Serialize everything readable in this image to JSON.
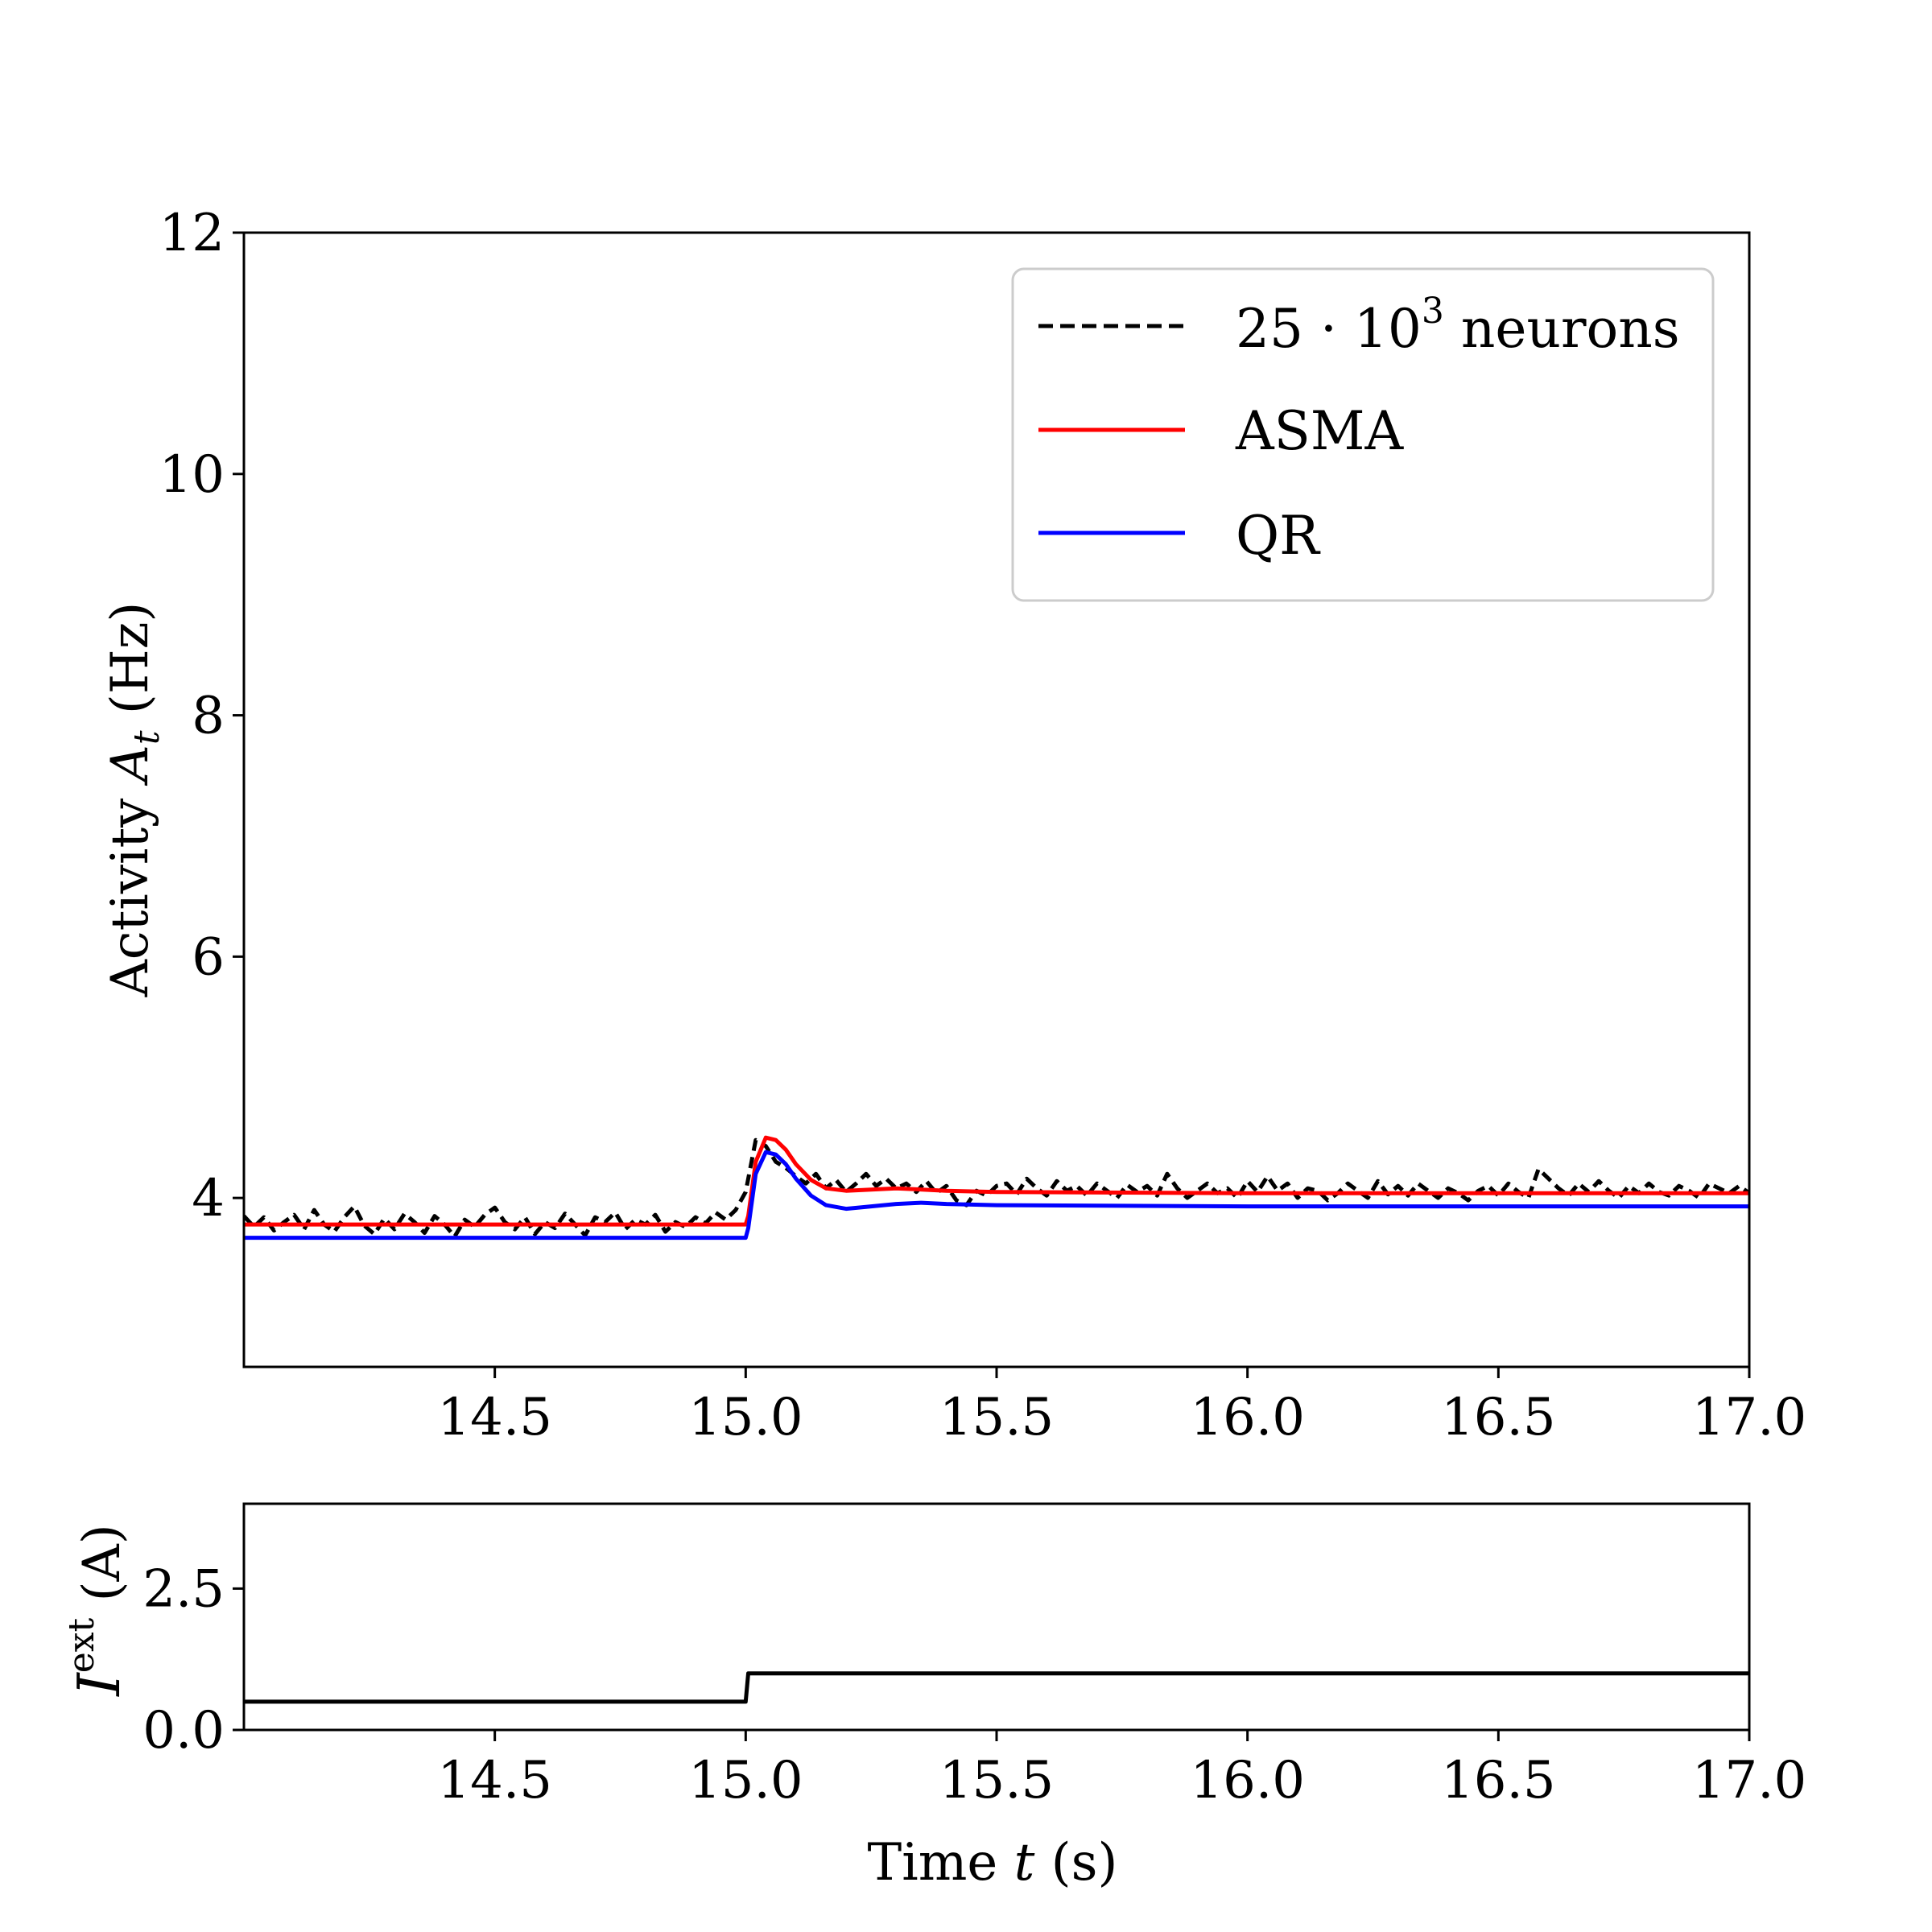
{
  "chart_data": [
    {
      "type": "line",
      "panel": "activity",
      "ylabel": "Activity A_t (Hz)",
      "ylabel_parts": {
        "prefix": "Activity ",
        "symbol": "A",
        "subscript": "t",
        "suffix": " (Hz)"
      },
      "xlabel": "",
      "xlim": [
        14.0,
        17.0
      ],
      "ylim": [
        2.6,
        12.0
      ],
      "x_ticks": [
        14.5,
        15.0,
        15.5,
        16.0,
        16.5,
        17.0
      ],
      "x_tick_labels": [
        "14.5",
        "15.0",
        "15.5",
        "16.0",
        "16.5",
        "17.0"
      ],
      "y_ticks": [
        4,
        6,
        8,
        10,
        12
      ],
      "y_tick_labels": [
        "4",
        "6",
        "8",
        "10",
        "12"
      ],
      "grid": false,
      "legend_position": "top-right",
      "legend": [
        {
          "label": "25 · 10³ neurons",
          "label_parts": {
            "base": "25 · 10",
            "sup": "3",
            "rest": " neurons"
          },
          "color": "#000000",
          "style": "dashed"
        },
        {
          "label": "ASMA",
          "color": "#ff0000",
          "style": "solid"
        },
        {
          "label": "QR",
          "color": "#0000ff",
          "style": "solid"
        }
      ],
      "series": [
        {
          "name": "25 · 10³ neurons",
          "color": "#000000",
          "style": "dashed",
          "x": [
            14.0,
            14.02,
            14.04,
            14.06,
            14.08,
            14.1,
            14.12,
            14.14,
            14.16,
            14.18,
            14.2,
            14.22,
            14.24,
            14.26,
            14.28,
            14.3,
            14.32,
            14.34,
            14.36,
            14.38,
            14.4,
            14.42,
            14.44,
            14.46,
            14.48,
            14.5,
            14.52,
            14.54,
            14.56,
            14.58,
            14.6,
            14.62,
            14.64,
            14.66,
            14.68,
            14.7,
            14.72,
            14.74,
            14.76,
            14.78,
            14.8,
            14.82,
            14.84,
            14.86,
            14.88,
            14.9,
            14.92,
            14.94,
            14.96,
            14.98,
            15.0,
            15.02,
            15.04,
            15.06,
            15.08,
            15.1,
            15.12,
            15.14,
            15.16,
            15.18,
            15.2,
            15.22,
            15.24,
            15.26,
            15.28,
            15.3,
            15.32,
            15.34,
            15.36,
            15.38,
            15.4,
            15.42,
            15.44,
            15.46,
            15.48,
            15.5,
            15.52,
            15.54,
            15.56,
            15.58,
            15.6,
            15.62,
            15.64,
            15.66,
            15.68,
            15.7,
            15.72,
            15.74,
            15.76,
            15.78,
            15.8,
            15.82,
            15.84,
            15.86,
            15.88,
            15.9,
            15.92,
            15.94,
            15.96,
            15.98,
            16.0,
            16.02,
            16.04,
            16.06,
            16.08,
            16.1,
            16.12,
            16.14,
            16.16,
            16.18,
            16.2,
            16.22,
            16.24,
            16.26,
            16.28,
            16.3,
            16.32,
            16.34,
            16.36,
            16.38,
            16.4,
            16.42,
            16.44,
            16.46,
            16.48,
            16.5,
            16.52,
            16.54,
            16.56,
            16.58,
            16.6,
            16.62,
            16.64,
            16.66,
            16.68,
            16.7,
            16.72,
            16.74,
            16.76,
            16.78,
            16.8,
            16.82,
            16.84,
            16.86,
            16.88,
            16.9,
            16.92,
            16.94,
            16.96,
            16.98,
            17.0
          ],
          "y": [
            3.85,
            3.76,
            3.84,
            3.73,
            3.8,
            3.86,
            3.74,
            3.9,
            3.78,
            3.72,
            3.84,
            3.93,
            3.77,
            3.7,
            3.83,
            3.74,
            3.87,
            3.8,
            3.71,
            3.85,
            3.78,
            3.68,
            3.82,
            3.76,
            3.86,
            3.92,
            3.8,
            3.74,
            3.84,
            3.7,
            3.8,
            3.75,
            3.87,
            3.78,
            3.69,
            3.84,
            3.8,
            3.88,
            3.74,
            3.82,
            3.78,
            3.86,
            3.72,
            3.8,
            3.76,
            3.84,
            3.79,
            3.88,
            3.82,
            3.9,
            4.05,
            4.48,
            4.43,
            4.3,
            4.25,
            4.18,
            4.12,
            4.2,
            4.08,
            4.15,
            4.05,
            4.12,
            4.2,
            4.1,
            4.16,
            4.08,
            4.12,
            4.05,
            4.14,
            4.04,
            4.1,
            3.98,
            3.94,
            4.06,
            4.02,
            4.1,
            4.12,
            4.03,
            4.16,
            4.08,
            4.02,
            4.14,
            4.06,
            4.1,
            4.02,
            4.12,
            4.06,
            4.0,
            4.11,
            4.05,
            4.1,
            4.02,
            4.2,
            4.08,
            4.0,
            4.06,
            4.12,
            4.04,
            4.08,
            4.0,
            4.14,
            4.05,
            4.18,
            4.06,
            4.12,
            4.0,
            4.08,
            4.06,
            3.98,
            4.04,
            4.12,
            4.06,
            4.0,
            4.14,
            4.03,
            4.1,
            4.02,
            4.12,
            4.06,
            4.0,
            4.08,
            4.04,
            3.98,
            4.06,
            4.1,
            4.02,
            4.12,
            4.05,
            4.0,
            4.24,
            4.16,
            4.08,
            4.02,
            4.12,
            4.05,
            4.14,
            4.06,
            4.0,
            4.1,
            4.04,
            4.12,
            4.05,
            4.02,
            4.1,
            4.06,
            4.0,
            4.12,
            4.08,
            4.04,
            4.1,
            4.04
          ]
        },
        {
          "name": "ASMA",
          "color": "#ff0000",
          "style": "solid",
          "x": [
            14.0,
            15.0,
            15.005,
            15.02,
            15.04,
            15.06,
            15.08,
            15.1,
            15.13,
            15.16,
            15.2,
            15.25,
            15.3,
            15.4,
            15.5,
            16.0,
            17.0
          ],
          "y": [
            3.78,
            3.78,
            3.85,
            4.3,
            4.5,
            4.48,
            4.4,
            4.28,
            4.15,
            4.08,
            4.06,
            4.07,
            4.08,
            4.06,
            4.05,
            4.04,
            4.04
          ]
        },
        {
          "name": "QR",
          "color": "#0000ff",
          "style": "solid",
          "x": [
            14.0,
            15.0,
            15.005,
            15.02,
            15.04,
            15.06,
            15.08,
            15.1,
            15.13,
            15.16,
            15.2,
            15.25,
            15.3,
            15.35,
            15.4,
            15.5,
            16.0,
            17.0
          ],
          "y": [
            3.67,
            3.67,
            3.75,
            4.2,
            4.38,
            4.36,
            4.28,
            4.16,
            4.02,
            3.94,
            3.91,
            3.93,
            3.95,
            3.96,
            3.95,
            3.94,
            3.93,
            3.93
          ]
        }
      ]
    },
    {
      "type": "line",
      "panel": "input",
      "ylabel": "I^ext (A)",
      "ylabel_parts": {
        "symbol": "I",
        "sup": "ext",
        "suffix": " (A)"
      },
      "xlabel": "Time t (s)",
      "xlabel_parts": {
        "prefix": "Time ",
        "symbol": "t",
        "suffix": " (s)"
      },
      "xlim": [
        14.0,
        17.0
      ],
      "ylim": [
        0.0,
        4.0
      ],
      "x_ticks": [
        14.5,
        15.0,
        15.5,
        16.0,
        16.5,
        17.0
      ],
      "x_tick_labels": [
        "14.5",
        "15.0",
        "15.5",
        "16.0",
        "16.5",
        "17.0"
      ],
      "y_ticks": [
        0.0,
        2.5
      ],
      "y_tick_labels": [
        "0.0",
        "2.5"
      ],
      "grid": false,
      "series": [
        {
          "color": "#000000",
          "style": "solid",
          "x": [
            14.0,
            15.0,
            15.005,
            17.0
          ],
          "y": [
            0.5,
            0.5,
            1.0,
            1.0
          ]
        }
      ]
    }
  ]
}
